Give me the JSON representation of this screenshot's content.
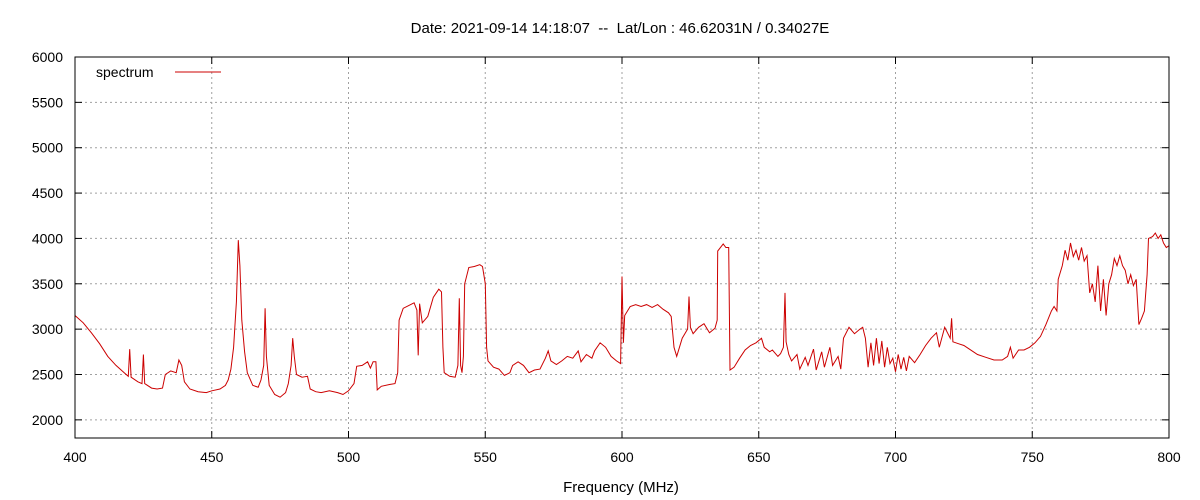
{
  "chart_data": {
    "type": "line",
    "title": "Date: 2021-09-14 14:18:07  --  Lat/Lon : 46.62031N / 0.34027E",
    "xlabel": "Frequency (MHz)",
    "ylabel": "",
    "xlim": [
      400,
      800
    ],
    "ylim": [
      1800,
      6000
    ],
    "xticks": [
      400,
      450,
      500,
      550,
      600,
      650,
      700,
      750,
      800
    ],
    "yticks": [
      2000,
      2500,
      3000,
      3500,
      4000,
      4500,
      5000,
      5500,
      6000
    ],
    "grid": true,
    "legend_position": "top-left",
    "series_color": "#cc0000",
    "series": [
      {
        "name": "spectrum",
        "points": [
          [
            400,
            3150
          ],
          [
            403,
            3070
          ],
          [
            406,
            2960
          ],
          [
            409,
            2840
          ],
          [
            412,
            2700
          ],
          [
            415,
            2600
          ],
          [
            418,
            2520
          ],
          [
            419.5,
            2480
          ],
          [
            420,
            2780
          ],
          [
            420.5,
            2470
          ],
          [
            423,
            2420
          ],
          [
            424.5,
            2400
          ],
          [
            425,
            2720
          ],
          [
            425.5,
            2400
          ],
          [
            428,
            2350
          ],
          [
            430,
            2340
          ],
          [
            432,
            2350
          ],
          [
            433,
            2500
          ],
          [
            435,
            2540
          ],
          [
            437,
            2520
          ],
          [
            438,
            2660
          ],
          [
            439,
            2600
          ],
          [
            440,
            2420
          ],
          [
            442,
            2340
          ],
          [
            445,
            2310
          ],
          [
            448,
            2300
          ],
          [
            450,
            2320
          ],
          [
            453,
            2340
          ],
          [
            455,
            2380
          ],
          [
            456,
            2440
          ],
          [
            457,
            2560
          ],
          [
            458,
            2800
          ],
          [
            459,
            3300
          ],
          [
            459.7,
            3980
          ],
          [
            460.3,
            3700
          ],
          [
            461,
            3100
          ],
          [
            462,
            2750
          ],
          [
            463,
            2520
          ],
          [
            465,
            2380
          ],
          [
            467,
            2360
          ],
          [
            468,
            2440
          ],
          [
            469,
            2600
          ],
          [
            469.5,
            3230
          ],
          [
            470,
            2700
          ],
          [
            471,
            2380
          ],
          [
            473,
            2280
          ],
          [
            475,
            2250
          ],
          [
            477,
            2300
          ],
          [
            478,
            2400
          ],
          [
            479,
            2600
          ],
          [
            479.6,
            2900
          ],
          [
            480.2,
            2700
          ],
          [
            481,
            2500
          ],
          [
            483,
            2470
          ],
          [
            485,
            2480
          ],
          [
            486,
            2340
          ],
          [
            488,
            2310
          ],
          [
            490,
            2300
          ],
          [
            493,
            2320
          ],
          [
            496,
            2300
          ],
          [
            498,
            2280
          ],
          [
            500,
            2320
          ],
          [
            502,
            2400
          ],
          [
            503,
            2590
          ],
          [
            505,
            2600
          ],
          [
            507,
            2640
          ],
          [
            508,
            2570
          ],
          [
            509,
            2640
          ],
          [
            510,
            2640
          ],
          [
            510.5,
            2330
          ],
          [
            512,
            2370
          ],
          [
            515,
            2390
          ],
          [
            517,
            2400
          ],
          [
            518,
            2520
          ],
          [
            518.5,
            3100
          ],
          [
            520,
            3230
          ],
          [
            522,
            3260
          ],
          [
            524,
            3290
          ],
          [
            525,
            3210
          ],
          [
            525.5,
            2710
          ],
          [
            526,
            3280
          ],
          [
            527,
            3070
          ],
          [
            529,
            3140
          ],
          [
            531,
            3350
          ],
          [
            533,
            3440
          ],
          [
            534,
            3410
          ],
          [
            534.5,
            2800
          ],
          [
            535,
            2520
          ],
          [
            537,
            2480
          ],
          [
            539,
            2470
          ],
          [
            540,
            2600
          ],
          [
            540.5,
            3340
          ],
          [
            541,
            2600
          ],
          [
            541.5,
            2520
          ],
          [
            542,
            2700
          ],
          [
            542.5,
            3500
          ],
          [
            544,
            3680
          ],
          [
            546,
            3690
          ],
          [
            548,
            3710
          ],
          [
            549,
            3690
          ],
          [
            550,
            3500
          ],
          [
            550.5,
            2800
          ],
          [
            551,
            2650
          ],
          [
            553,
            2580
          ],
          [
            555,
            2560
          ],
          [
            557,
            2490
          ],
          [
            559,
            2520
          ],
          [
            560,
            2600
          ],
          [
            562,
            2640
          ],
          [
            564,
            2600
          ],
          [
            566,
            2520
          ],
          [
            568,
            2550
          ],
          [
            570,
            2560
          ],
          [
            572,
            2680
          ],
          [
            573,
            2760
          ],
          [
            574,
            2650
          ],
          [
            576,
            2610
          ],
          [
            578,
            2650
          ],
          [
            580,
            2700
          ],
          [
            582,
            2680
          ],
          [
            584,
            2760
          ],
          [
            585,
            2640
          ],
          [
            587,
            2720
          ],
          [
            589,
            2680
          ],
          [
            590,
            2760
          ],
          [
            592,
            2850
          ],
          [
            594,
            2800
          ],
          [
            596,
            2700
          ],
          [
            598,
            2650
          ],
          [
            599.5,
            2620
          ],
          [
            600,
            3580
          ],
          [
            600.5,
            2850
          ],
          [
            601,
            3150
          ],
          [
            603,
            3250
          ],
          [
            605,
            3270
          ],
          [
            607,
            3250
          ],
          [
            609,
            3270
          ],
          [
            611,
            3240
          ],
          [
            613,
            3270
          ],
          [
            615,
            3220
          ],
          [
            617,
            3180
          ],
          [
            618,
            3140
          ],
          [
            619,
            2800
          ],
          [
            620,
            2700
          ],
          [
            622,
            2900
          ],
          [
            624,
            3000
          ],
          [
            624.5,
            3360
          ],
          [
            625,
            3020
          ],
          [
            626,
            2950
          ],
          [
            628,
            3020
          ],
          [
            630,
            3060
          ],
          [
            632,
            2960
          ],
          [
            634,
            3010
          ],
          [
            634.8,
            3100
          ],
          [
            635,
            3860
          ],
          [
            637,
            3940
          ],
          [
            638,
            3900
          ],
          [
            639,
            3900
          ],
          [
            639.5,
            2550
          ],
          [
            641,
            2580
          ],
          [
            643,
            2680
          ],
          [
            645,
            2770
          ],
          [
            647,
            2820
          ],
          [
            649,
            2850
          ],
          [
            651,
            2900
          ],
          [
            652,
            2800
          ],
          [
            654,
            2750
          ],
          [
            655,
            2770
          ],
          [
            657,
            2700
          ],
          [
            658,
            2730
          ],
          [
            659,
            2800
          ],
          [
            659.6,
            3400
          ],
          [
            660,
            2860
          ],
          [
            661,
            2720
          ],
          [
            662,
            2650
          ],
          [
            664,
            2720
          ],
          [
            665,
            2560
          ],
          [
            667,
            2690
          ],
          [
            668,
            2600
          ],
          [
            670,
            2780
          ],
          [
            671,
            2550
          ],
          [
            673,
            2750
          ],
          [
            674,
            2580
          ],
          [
            676,
            2800
          ],
          [
            677,
            2600
          ],
          [
            679,
            2700
          ],
          [
            680,
            2560
          ],
          [
            681,
            2900
          ],
          [
            683,
            3020
          ],
          [
            685,
            2950
          ],
          [
            687,
            3000
          ],
          [
            688,
            3020
          ],
          [
            689,
            2900
          ],
          [
            690,
            2580
          ],
          [
            691,
            2850
          ],
          [
            692,
            2600
          ],
          [
            693,
            2900
          ],
          [
            694,
            2620
          ],
          [
            695,
            2870
          ],
          [
            696,
            2580
          ],
          [
            697,
            2800
          ],
          [
            698,
            2620
          ],
          [
            699,
            2680
          ],
          [
            700,
            2530
          ],
          [
            701,
            2720
          ],
          [
            702,
            2560
          ],
          [
            703,
            2690
          ],
          [
            704,
            2540
          ],
          [
            705,
            2700
          ],
          [
            707,
            2630
          ],
          [
            709,
            2720
          ],
          [
            711,
            2820
          ],
          [
            713,
            2900
          ],
          [
            715,
            2960
          ],
          [
            716,
            2800
          ],
          [
            718,
            3020
          ],
          [
            720,
            2900
          ],
          [
            720.5,
            3120
          ],
          [
            721,
            2860
          ],
          [
            723,
            2840
          ],
          [
            725,
            2820
          ],
          [
            727,
            2780
          ],
          [
            730,
            2720
          ],
          [
            733,
            2690
          ],
          [
            736,
            2660
          ],
          [
            739,
            2660
          ],
          [
            741,
            2700
          ],
          [
            742,
            2800
          ],
          [
            743,
            2680
          ],
          [
            745,
            2770
          ],
          [
            747,
            2770
          ],
          [
            749,
            2800
          ],
          [
            751,
            2850
          ],
          [
            753,
            2920
          ],
          [
            755,
            3050
          ],
          [
            757,
            3200
          ],
          [
            758,
            3250
          ],
          [
            759,
            3200
          ],
          [
            759.5,
            3550
          ],
          [
            761,
            3700
          ],
          [
            762,
            3870
          ],
          [
            763,
            3760
          ],
          [
            764,
            3950
          ],
          [
            765,
            3800
          ],
          [
            766,
            3870
          ],
          [
            767,
            3760
          ],
          [
            768,
            3900
          ],
          [
            769,
            3750
          ],
          [
            770,
            3810
          ],
          [
            771,
            3400
          ],
          [
            772,
            3500
          ],
          [
            773,
            3300
          ],
          [
            774,
            3700
          ],
          [
            775,
            3200
          ],
          [
            776,
            3550
          ],
          [
            777,
            3150
          ],
          [
            778,
            3500
          ],
          [
            779,
            3600
          ],
          [
            780,
            3780
          ],
          [
            781,
            3700
          ],
          [
            782,
            3810
          ],
          [
            783,
            3700
          ],
          [
            784,
            3650
          ],
          [
            785,
            3500
          ],
          [
            786,
            3600
          ],
          [
            787,
            3480
          ],
          [
            788,
            3550
          ],
          [
            789,
            3050
          ],
          [
            790,
            3120
          ],
          [
            791,
            3200
          ],
          [
            792,
            3600
          ],
          [
            792.5,
            4000
          ],
          [
            794,
            4020
          ],
          [
            795,
            4060
          ],
          [
            796,
            4000
          ],
          [
            797,
            4040
          ],
          [
            798,
            3950
          ],
          [
            799,
            3900
          ],
          [
            800,
            3920
          ]
        ]
      }
    ]
  }
}
